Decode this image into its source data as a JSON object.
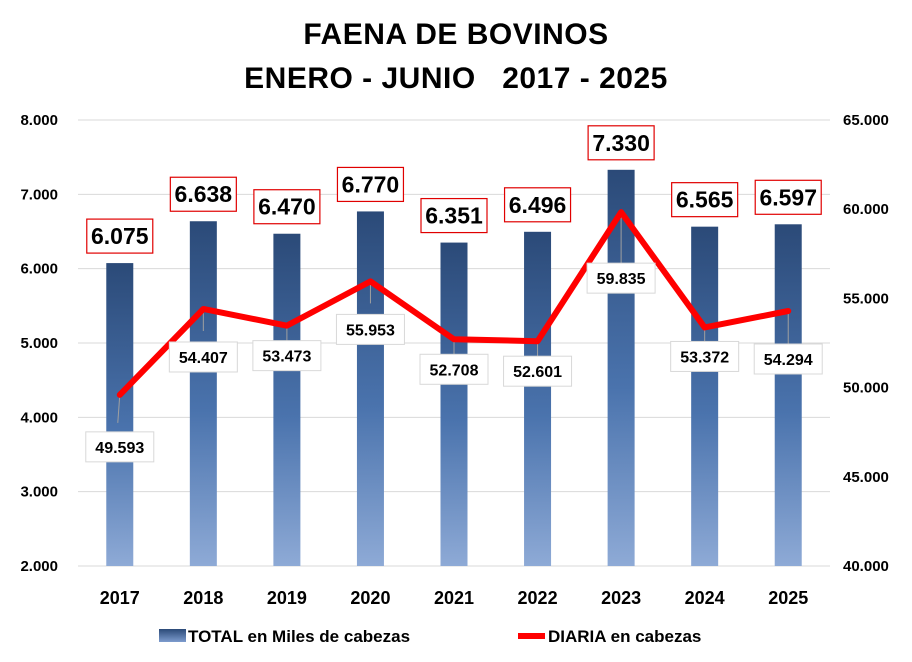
{
  "chart_data": {
    "type": "bar",
    "title": "FAENA DE BOVINOS",
    "subtitle": "ENERO - JUNIO   2017 - 2025",
    "categories": [
      "2017",
      "2018",
      "2019",
      "2020",
      "2021",
      "2022",
      "2023",
      "2024",
      "2025"
    ],
    "series": [
      {
        "name": "TOTAL  en Miles de cabezas",
        "type": "bar",
        "axis": "left",
        "values": [
          6075,
          6638,
          6470,
          6770,
          6351,
          6496,
          7330,
          6565,
          6597
        ],
        "labels": [
          "6.075",
          "6.638",
          "6.470",
          "6.770",
          "6.351",
          "6.496",
          "7.330",
          "6.565",
          "6.597"
        ],
        "color": "#2e5081"
      },
      {
        "name": "DIARIA     en cabezas",
        "type": "line",
        "axis": "right",
        "values": [
          49593,
          54407,
          53473,
          55953,
          52708,
          52601,
          59835,
          53372,
          54294
        ],
        "labels": [
          "49.593",
          "54.407",
          "53.473",
          "55.953",
          "52.708",
          "52.601",
          "59.835",
          "53.372",
          "54.294"
        ],
        "color": "#ff0000"
      }
    ],
    "y_left": {
      "range": [
        2000,
        8000
      ],
      "ticks": [
        "2.000",
        "3.000",
        "4.000",
        "5.000",
        "6.000",
        "7.000",
        "8.000"
      ]
    },
    "y_right": {
      "range": [
        40000,
        65000
      ],
      "ticks": [
        "40.000",
        "45.000",
        "50.000",
        "55.000",
        "60.000",
        "65.000"
      ]
    },
    "grid": true,
    "legend": "bottom"
  }
}
